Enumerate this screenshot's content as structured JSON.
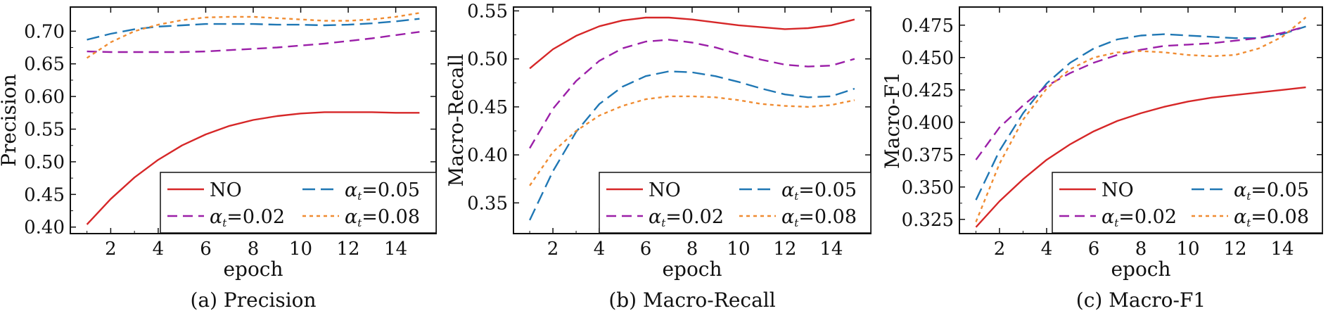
{
  "chart_data": [
    {
      "type": "line",
      "caption": "(a) Precision",
      "xlabel": "epoch",
      "ylabel": "Precision",
      "xlim": [
        0.3,
        15.7
      ],
      "ylim": [
        0.39,
        0.737
      ],
      "xticks": [
        2,
        4,
        6,
        8,
        10,
        12,
        14
      ],
      "xtick_labels": [
        "2",
        "4",
        "6",
        "8",
        "10",
        "12",
        "14"
      ],
      "yticks": [
        0.4,
        0.45,
        0.5,
        0.55,
        0.6,
        0.65,
        0.7
      ],
      "ytick_labels": [
        "0.40",
        "0.45",
        "0.50",
        "0.55",
        "0.60",
        "0.65",
        "0.70"
      ],
      "legend_position": "lower-right",
      "x": [
        1,
        2,
        3,
        4,
        5,
        6,
        7,
        8,
        9,
        10,
        11,
        12,
        13,
        14,
        15
      ],
      "series": [
        {
          "name": "NO",
          "color": "#d62728",
          "dash": "solid",
          "values": [
            0.404,
            0.443,
            0.476,
            0.503,
            0.525,
            0.542,
            0.555,
            0.564,
            0.57,
            0.574,
            0.576,
            0.576,
            0.576,
            0.575,
            0.575
          ]
        },
        {
          "name": "α_t=0.05",
          "color": "#1f77b4",
          "dash": "long",
          "values": [
            0.687,
            0.696,
            0.703,
            0.707,
            0.709,
            0.711,
            0.711,
            0.711,
            0.71,
            0.71,
            0.709,
            0.71,
            0.712,
            0.715,
            0.719
          ]
        },
        {
          "name": "α_t=0.02",
          "color": "#9b1fa8",
          "dash": "medium",
          "values": [
            0.669,
            0.668,
            0.668,
            0.668,
            0.668,
            0.669,
            0.671,
            0.673,
            0.675,
            0.678,
            0.681,
            0.685,
            0.689,
            0.694,
            0.699
          ]
        },
        {
          "name": "α_t=0.08",
          "color": "#f08c32",
          "dash": "short",
          "values": [
            0.659,
            0.683,
            0.7,
            0.71,
            0.717,
            0.721,
            0.722,
            0.722,
            0.72,
            0.718,
            0.716,
            0.716,
            0.718,
            0.722,
            0.728
          ]
        }
      ]
    },
    {
      "type": "line",
      "caption": "(b) Macro-Recall",
      "xlabel": "epoch",
      "ylabel": "Macro-Recall",
      "xlim": [
        0.3,
        15.7
      ],
      "ylim": [
        0.318,
        0.554
      ],
      "xticks": [
        2,
        4,
        6,
        8,
        10,
        12,
        14
      ],
      "xtick_labels": [
        "2",
        "4",
        "6",
        "8",
        "10",
        "12",
        "14"
      ],
      "yticks": [
        0.35,
        0.4,
        0.45,
        0.5,
        0.55
      ],
      "ytick_labels": [
        "0.35",
        "0.40",
        "0.45",
        "0.50",
        "0.55"
      ],
      "legend_position": "lower-right",
      "x": [
        1,
        2,
        3,
        4,
        5,
        6,
        7,
        8,
        9,
        10,
        11,
        12,
        13,
        14,
        15
      ],
      "series": [
        {
          "name": "NO",
          "color": "#d62728",
          "dash": "solid",
          "values": [
            0.49,
            0.51,
            0.524,
            0.534,
            0.54,
            0.543,
            0.543,
            0.541,
            0.538,
            0.535,
            0.533,
            0.531,
            0.532,
            0.535,
            0.541
          ]
        },
        {
          "name": "α_t=0.05",
          "color": "#1f77b4",
          "dash": "long",
          "values": [
            0.332,
            0.383,
            0.424,
            0.453,
            0.471,
            0.482,
            0.487,
            0.486,
            0.482,
            0.476,
            0.469,
            0.463,
            0.46,
            0.461,
            0.469
          ]
        },
        {
          "name": "α_t=0.02",
          "color": "#9b1fa8",
          "dash": "medium",
          "values": [
            0.407,
            0.448,
            0.477,
            0.498,
            0.511,
            0.518,
            0.52,
            0.517,
            0.512,
            0.505,
            0.499,
            0.494,
            0.492,
            0.493,
            0.5
          ]
        },
        {
          "name": "α_t=0.08",
          "color": "#f08c32",
          "dash": "short",
          "values": [
            0.368,
            0.403,
            0.425,
            0.441,
            0.451,
            0.458,
            0.461,
            0.461,
            0.46,
            0.457,
            0.453,
            0.451,
            0.45,
            0.452,
            0.457
          ]
        }
      ]
    },
    {
      "type": "line",
      "caption": "(c) Macro-F1",
      "xlabel": "epoch",
      "ylabel": "Macro-F1",
      "xlim": [
        0.3,
        15.7
      ],
      "ylim": [
        0.314,
        0.489
      ],
      "xticks": [
        2,
        4,
        6,
        8,
        10,
        12,
        14
      ],
      "xtick_labels": [
        "2",
        "4",
        "6",
        "8",
        "10",
        "12",
        "14"
      ],
      "yticks": [
        0.325,
        0.35,
        0.375,
        0.4,
        0.425,
        0.45,
        0.475
      ],
      "ytick_labels": [
        "0.325",
        "0.350",
        "0.375",
        "0.400",
        "0.425",
        "0.450",
        "0.475"
      ],
      "legend_position": "lower-right",
      "x": [
        1,
        2,
        3,
        4,
        5,
        6,
        7,
        8,
        9,
        10,
        11,
        12,
        13,
        14,
        15
      ],
      "series": [
        {
          "name": "NO",
          "color": "#d62728",
          "dash": "solid",
          "values": [
            0.319,
            0.339,
            0.356,
            0.371,
            0.383,
            0.393,
            0.401,
            0.407,
            0.412,
            0.416,
            0.419,
            0.421,
            0.423,
            0.425,
            0.427
          ]
        },
        {
          "name": "α_t=0.05",
          "color": "#1f77b4",
          "dash": "long",
          "values": [
            0.34,
            0.378,
            0.407,
            0.43,
            0.446,
            0.457,
            0.464,
            0.467,
            0.468,
            0.467,
            0.466,
            0.465,
            0.465,
            0.468,
            0.474
          ]
        },
        {
          "name": "α_t=0.02",
          "color": "#9b1fa8",
          "dash": "medium",
          "values": [
            0.371,
            0.396,
            0.413,
            0.428,
            0.438,
            0.446,
            0.452,
            0.456,
            0.459,
            0.46,
            0.461,
            0.463,
            0.465,
            0.469,
            0.474
          ]
        },
        {
          "name": "α_t=0.08",
          "color": "#f08c32",
          "dash": "short",
          "values": [
            0.323,
            0.368,
            0.402,
            0.426,
            0.441,
            0.45,
            0.454,
            0.455,
            0.454,
            0.452,
            0.451,
            0.452,
            0.457,
            0.466,
            0.481
          ]
        }
      ]
    }
  ]
}
